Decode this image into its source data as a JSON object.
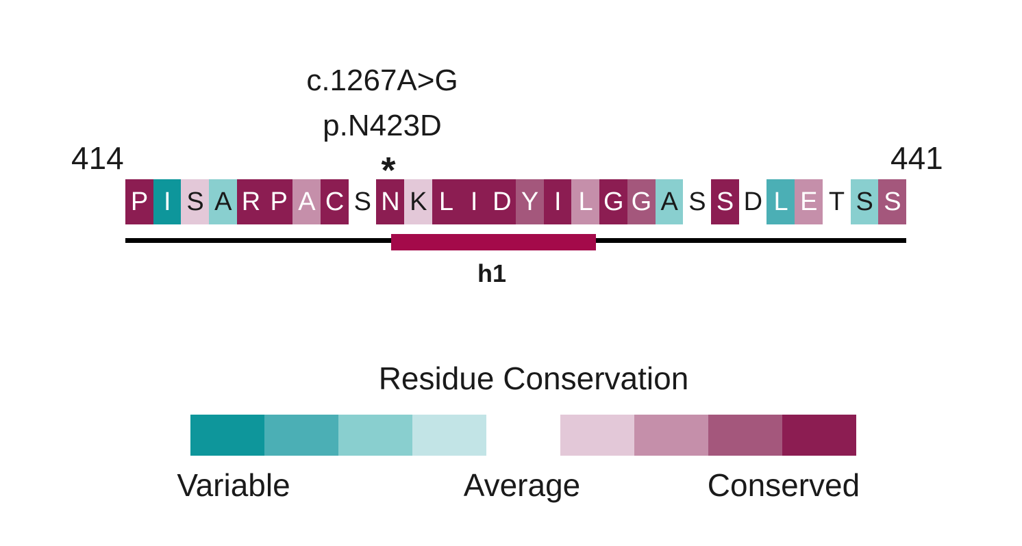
{
  "mutation": {
    "cdna": "c.1267A>G",
    "protein": "p.N423D",
    "marker": "*"
  },
  "range": {
    "start": "414",
    "end": "441"
  },
  "sequence": [
    {
      "aa": "P",
      "grade": 9
    },
    {
      "aa": "I",
      "grade": 1
    },
    {
      "aa": "S",
      "grade": 6
    },
    {
      "aa": "A",
      "grade": 3
    },
    {
      "aa": "R",
      "grade": 9
    },
    {
      "aa": "P",
      "grade": 9
    },
    {
      "aa": "A",
      "grade": 7
    },
    {
      "aa": "C",
      "grade": 9
    },
    {
      "aa": "S",
      "grade": 5
    },
    {
      "aa": "N",
      "grade": 9
    },
    {
      "aa": "K",
      "grade": 6
    },
    {
      "aa": "L",
      "grade": 9
    },
    {
      "aa": "I",
      "grade": 9
    },
    {
      "aa": "D",
      "grade": 9
    },
    {
      "aa": "Y",
      "grade": 8
    },
    {
      "aa": "I",
      "grade": 9
    },
    {
      "aa": "L",
      "grade": 7
    },
    {
      "aa": "G",
      "grade": 9
    },
    {
      "aa": "G",
      "grade": 8
    },
    {
      "aa": "A",
      "grade": 3
    },
    {
      "aa": "S",
      "grade": 5
    },
    {
      "aa": "S",
      "grade": 9
    },
    {
      "aa": "D",
      "grade": 5
    },
    {
      "aa": "L",
      "grade": 2
    },
    {
      "aa": "E",
      "grade": 7
    },
    {
      "aa": "T",
      "grade": 5
    },
    {
      "aa": "S",
      "grade": 3
    },
    {
      "aa": "S",
      "grade": 8
    }
  ],
  "helix": {
    "label": "h1",
    "color": "#a40a4a"
  },
  "legend": {
    "title": "Residue Conservation",
    "labels": {
      "variable": "Variable",
      "average": "Average",
      "conserved": "Conserved"
    },
    "grades": [
      {
        "grade": 1,
        "color": "#0e969b"
      },
      {
        "grade": 2,
        "color": "#4bafb5"
      },
      {
        "grade": 3,
        "color": "#89cfcf"
      },
      {
        "grade": 4,
        "color": "#c2e4e6"
      },
      {
        "grade": 5,
        "color": "#ffffff"
      },
      {
        "grade": 6,
        "color": "#e3c8d8"
      },
      {
        "grade": 7,
        "color": "#c58faa"
      },
      {
        "grade": 8,
        "color": "#a4577c"
      },
      {
        "grade": 9,
        "color": "#8c1d52"
      }
    ]
  }
}
